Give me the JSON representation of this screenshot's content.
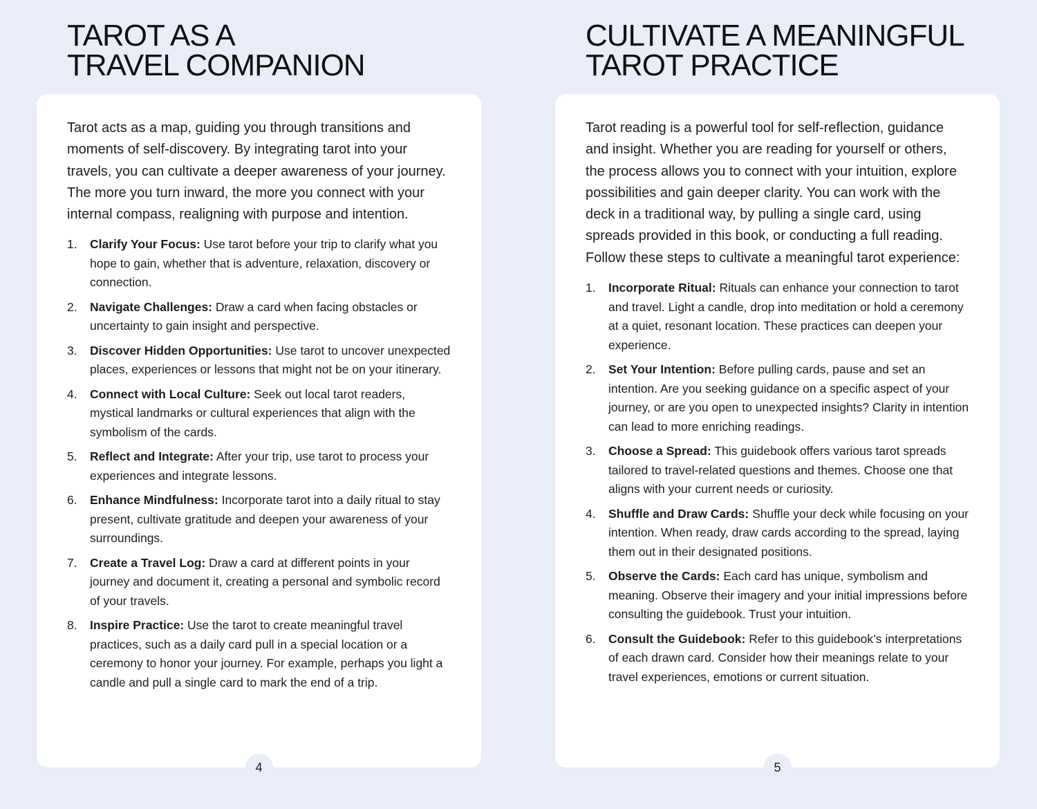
{
  "left_page": {
    "title_line1": "TAROT AS A",
    "title_line2": "TRAVEL COMPANION",
    "intro": "Tarot acts as a map, guiding you through transitions and moments of self-discovery. By integrating tarot into your travels, you can cultivate a deeper awareness of your journey. The more you turn inward, the more you connect with your internal compass, realigning with purpose and intention.",
    "items": [
      {
        "num": "1.",
        "term": "Clarify Your Focus:",
        "text": " Use tarot before your trip to clarify what you hope to gain, whether that is adventure, relaxation, discovery or connection."
      },
      {
        "num": "2.",
        "term": "Navigate Challenges:",
        "text": " Draw a card when facing obstacles or uncertainty to gain insight and perspective."
      },
      {
        "num": "3.",
        "term": "Discover Hidden Opportunities:",
        "text": " Use tarot to uncover unexpected places, experiences or lessons that might not be on your itinerary."
      },
      {
        "num": "4.",
        "term": "Connect with Local Culture:",
        "text": " Seek out local tarot readers, mystical landmarks or cultural experiences that align with the symbolism of the cards."
      },
      {
        "num": "5.",
        "term": "Reflect and Integrate:",
        "text": " After your trip, use tarot to process your experiences and integrate lessons."
      },
      {
        "num": "6.",
        "term": "Enhance Mindfulness:",
        "text": " Incorporate tarot into a daily ritual to stay present, cultivate gratitude and deepen your awareness of your surroundings."
      },
      {
        "num": "7.",
        "term": "Create a Travel Log:",
        "text": " Draw a card at different points in your journey and document it, creating a personal and symbolic record of your travels."
      },
      {
        "num": "8.",
        "term": "Inspire Practice:",
        "text": " Use the tarot to create meaningful travel practices, such as a daily card pull in a special location or a ceremony to honor your journey. For example, perhaps you light a candle and pull a single card to mark the end of a trip."
      }
    ],
    "page_number": "4"
  },
  "right_page": {
    "title_line1": "CULTIVATE A MEANINGFUL",
    "title_line2": "TAROT PRACTICE",
    "intro": "Tarot reading is a powerful tool for self-reflection, guidance and insight. Whether you are reading for yourself or others, the process allows you to connect with your intuition, explore possibilities and gain deeper clarity. You can work with the deck in a traditional way, by pulling a single card, using spreads provided in this book, or conducting a full reading. Follow these steps to cultivate a meaningful tarot experience:",
    "items": [
      {
        "num": "1.",
        "term": "Incorporate Ritual:",
        "text": " Rituals can enhance your connection to tarot and travel. Light a candle, drop into meditation or hold a ceremony at a quiet, resonant location. These practices can deepen your experience."
      },
      {
        "num": "2.",
        "term": "Set Your Intention:",
        "text": " Before pulling cards, pause and set an intention. Are you seeking guidance on a specific aspect of your journey, or are you open to unexpected insights? Clarity in intention can lead to more enriching readings."
      },
      {
        "num": "3.",
        "term": "Choose a Spread:",
        "text": " This guidebook offers various tarot spreads tailored to travel-related questions and themes. Choose one that aligns with your current needs or curiosity."
      },
      {
        "num": "4.",
        "term": "Shuffle and Draw Cards:",
        "text": " Shuffle your deck while focusing on your intention. When ready, draw cards according to the spread, laying them out in their designated positions."
      },
      {
        "num": "5.",
        "term": "Observe the Cards:",
        "text": " Each card has unique, symbolism and meaning. Observe their imagery and your initial impressions before consulting the guidebook. Trust your intuition."
      },
      {
        "num": "6.",
        "term": "Consult the Guidebook:",
        "text": " Refer to this guidebook’s interpretations of each drawn card. Consider how their meanings relate to your travel experiences, emotions or current situation."
      }
    ],
    "page_number": "5"
  },
  "colors": {
    "background": "#e8edf8",
    "card": "#ffffff",
    "text": "#1d1d1f"
  }
}
